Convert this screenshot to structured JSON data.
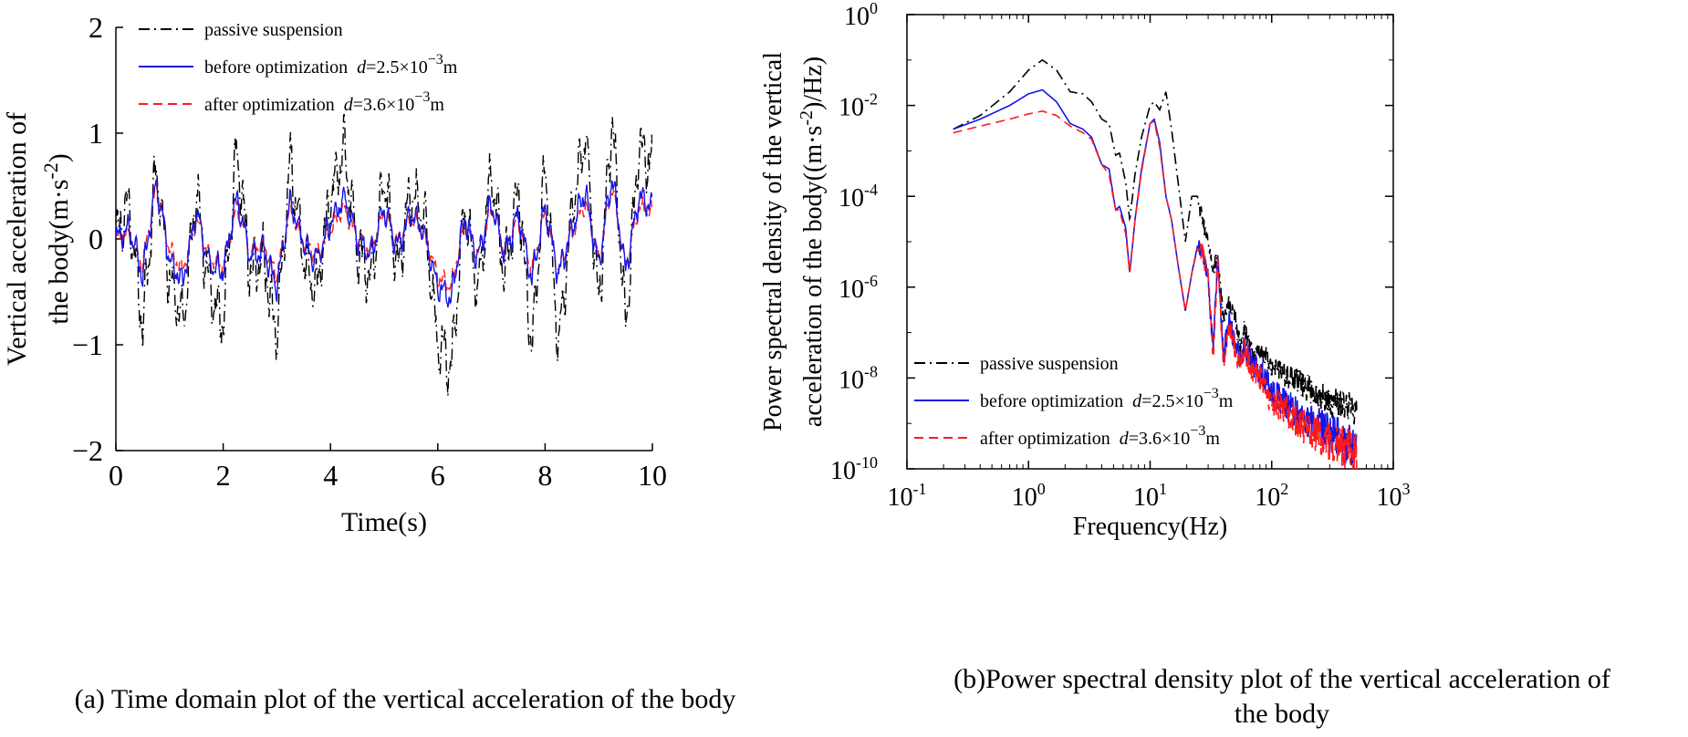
{
  "chart_data": [
    {
      "type": "line",
      "panel": "a",
      "caption": "(a) Time domain plot of the vertical acceleration of the body",
      "xlabel": "Time(s)",
      "ylabel_line1": "Vertical acceleration of",
      "ylabel_line2": "the body(m·s",
      "ylabel_exp": "-2",
      "ylabel_close": ")",
      "xlim": [
        0,
        10
      ],
      "ylim": [
        -2,
        2
      ],
      "xticks": [
        "0",
        "2",
        "4",
        "6",
        "8",
        "10"
      ],
      "yticks": [
        "−2",
        "−1",
        "0",
        "1",
        "2"
      ],
      "legend_position": "top-left",
      "grid": false,
      "x": [
        0,
        0.25,
        0.5,
        0.75,
        1,
        1.25,
        1.5,
        1.75,
        2,
        2.25,
        2.5,
        2.75,
        3,
        3.25,
        3.5,
        3.75,
        4,
        4.25,
        4.5,
        4.75,
        5,
        5.25,
        5.5,
        5.75,
        6,
        6.25,
        6.5,
        6.75,
        7,
        7.25,
        7.5,
        7.75,
        8,
        8.25,
        8.5,
        8.75,
        9,
        9.25,
        9.5,
        9.75,
        10
      ],
      "series": [
        {
          "name": "passive suspension",
          "color": "#000000",
          "dash": "dashdot",
          "values": [
            0.05,
            0.35,
            -0.85,
            0.7,
            -0.4,
            -0.8,
            0.45,
            -0.5,
            -0.8,
            0.85,
            -0.3,
            -0.2,
            -0.9,
            0.75,
            -0.2,
            -0.5,
            0.4,
            0.85,
            -0.1,
            -0.4,
            0.6,
            -0.3,
            0.45,
            0.2,
            -1.0,
            -1.2,
            0.3,
            -0.5,
            0.65,
            -0.35,
            0.5,
            -1.05,
            0.7,
            -1.05,
            0.25,
            1.0,
            -0.6,
            1.15,
            -0.85,
            0.9,
            0.65
          ]
        },
        {
          "name": "before optimization",
          "color": "#1515e6",
          "dash": "solid",
          "values": [
            0.0,
            0.1,
            -0.35,
            0.55,
            -0.2,
            -0.4,
            0.25,
            -0.25,
            -0.3,
            0.4,
            -0.15,
            -0.1,
            -0.45,
            0.35,
            -0.05,
            -0.2,
            0.15,
            0.4,
            0.0,
            -0.15,
            0.3,
            -0.1,
            0.25,
            0.05,
            -0.45,
            -0.55,
            0.2,
            -0.2,
            0.35,
            -0.15,
            0.25,
            -0.4,
            0.3,
            -0.35,
            0.1,
            0.45,
            -0.25,
            0.6,
            -0.3,
            0.4,
            0.3
          ]
        },
        {
          "name": "after optimization",
          "color": "#ff1a1a",
          "dash": "dashed",
          "values": [
            0.0,
            0.05,
            -0.25,
            0.5,
            -0.1,
            -0.3,
            0.2,
            -0.2,
            -0.25,
            0.3,
            -0.1,
            -0.05,
            -0.35,
            0.3,
            -0.05,
            -0.15,
            0.1,
            0.3,
            0.0,
            -0.1,
            0.25,
            -0.05,
            0.2,
            0.05,
            -0.35,
            -0.45,
            0.15,
            -0.15,
            0.3,
            -0.1,
            0.2,
            -0.3,
            0.25,
            -0.3,
            0.05,
            0.35,
            -0.2,
            0.5,
            -0.25,
            0.3,
            0.25
          ]
        }
      ],
      "legend": [
        {
          "label": "passive suspension",
          "var": "",
          "eq": "",
          "exp": "",
          "unit": ""
        },
        {
          "label": "before optimization",
          "var": "d",
          "eq": "=2.5×10",
          "exp": "−3",
          "unit": "m"
        },
        {
          "label": "after optimization",
          "var": "d",
          "eq": "=3.6×10",
          "exp": "−3",
          "unit": "m"
        }
      ]
    },
    {
      "type": "line",
      "panel": "b",
      "caption_line1": "(b)Power spectral density plot of the vertical acceleration of",
      "caption_line2": "the body",
      "xlabel": "Frequency(Hz)",
      "ylabel_line1": "Power spectral density of the vertical",
      "ylabel_line2": "acceleration of the body((m·s",
      "ylabel_exp": "-2",
      "ylabel_close": ")/Hz)",
      "xscale": "log",
      "yscale": "log",
      "xlim": [
        0.1,
        1000
      ],
      "ylim": [
        1e-10,
        1
      ],
      "xticks": [
        {
          "base": "10",
          "exp": "-1"
        },
        {
          "base": "10",
          "exp": "0"
        },
        {
          "base": "10",
          "exp": "1"
        },
        {
          "base": "10",
          "exp": "2"
        },
        {
          "base": "10",
          "exp": "3"
        }
      ],
      "yticks": [
        {
          "base": "10",
          "exp": "-10"
        },
        {
          "base": "10",
          "exp": "-8"
        },
        {
          "base": "10",
          "exp": "-6"
        },
        {
          "base": "10",
          "exp": "-4"
        },
        {
          "base": "10",
          "exp": "-2"
        },
        {
          "base": "10",
          "exp": "0"
        }
      ],
      "legend_position": "bottom-left",
      "grid": false,
      "x": [
        0.24,
        0.4,
        0.7,
        1.0,
        1.3,
        1.7,
        2.2,
        2.8,
        3.3,
        4.0,
        4.6,
        5.2,
        5.6,
        6.3,
        6.8,
        7.5,
        8.5,
        10.0,
        10.8,
        12.0,
        13.5,
        15.0,
        17.0,
        19.5,
        22.0,
        24.5,
        27.0,
        30.0,
        33.0,
        36.0,
        40.0,
        45.0,
        50.0,
        55.0,
        60.0,
        70.0,
        80.0,
        100.0,
        130.0,
        170.0,
        220.0,
        300.0,
        400.0,
        500.0
      ],
      "series": [
        {
          "name": "passive suspension",
          "color": "#000000",
          "dash": "dashdot",
          "values": [
            0.003,
            0.006,
            0.02,
            0.06,
            0.1,
            0.06,
            0.02,
            0.018,
            0.012,
            0.005,
            0.004,
            0.0008,
            0.0009,
            0.0002,
            3e-05,
            0.0003,
            0.002,
            0.01,
            0.012,
            0.008,
            0.02,
            0.003,
            0.0002,
            1e-05,
            0.0001,
            0.0001,
            3e-05,
            1e-05,
            2e-06,
            5e-06,
            2e-07,
            5e-07,
            2e-07,
            5e-08,
            1.2e-07,
            3e-08,
            4e-08,
            2e-08,
            1.2e-08,
            8e-09,
            5e-09,
            3e-09,
            2.5e-09,
            2e-09
          ]
        },
        {
          "name": "before optimization",
          "color": "#1515e6",
          "dash": "solid",
          "values": [
            0.003,
            0.005,
            0.01,
            0.018,
            0.022,
            0.012,
            0.004,
            0.003,
            0.002,
            0.0005,
            0.0004,
            5e-05,
            6e-05,
            2e-05,
            2e-06,
            3e-05,
            0.0004,
            0.004,
            0.005,
            0.0015,
            0.0001,
            3e-05,
            3e-06,
            3e-07,
            2e-06,
            8e-06,
            6e-06,
            1.5e-06,
            4e-08,
            5e-06,
            3e-08,
            2e-07,
            5e-08,
            3e-08,
            5e-08,
            2e-08,
            1.5e-08,
            5e-09,
            3e-09,
            1.5e-09,
            1e-09,
            6e-10,
            4e-10,
            3e-10
          ]
        },
        {
          "name": "after optimization",
          "color": "#ff1a1a",
          "dash": "dashed",
          "values": [
            0.0025,
            0.0035,
            0.005,
            0.0065,
            0.0075,
            0.006,
            0.0035,
            0.0025,
            0.0018,
            0.0005,
            0.0003,
            5e-05,
            5e-05,
            1.5e-05,
            2e-06,
            3e-05,
            0.00035,
            0.004,
            0.0045,
            0.0012,
            0.0001,
            3e-05,
            3e-06,
            3e-07,
            2e-06,
            7e-06,
            6e-06,
            1.5e-06,
            3e-08,
            4e-06,
            2e-08,
            1.5e-07,
            4e-08,
            2e-08,
            4e-08,
            1.5e-08,
            1e-08,
            3e-09,
            2e-09,
            1e-09,
            6e-10,
            4e-10,
            3e-10,
            2e-10
          ]
        }
      ],
      "legend": [
        {
          "label": "passive suspension",
          "var": "",
          "eq": "",
          "exp": "",
          "unit": ""
        },
        {
          "label": "before optimization",
          "var": "d",
          "eq": "=2.5×10",
          "exp": "−3",
          "unit": "m"
        },
        {
          "label": "after optimization",
          "var": "d",
          "eq": "=3.6×10",
          "exp": "−3",
          "unit": "m"
        }
      ]
    }
  ]
}
